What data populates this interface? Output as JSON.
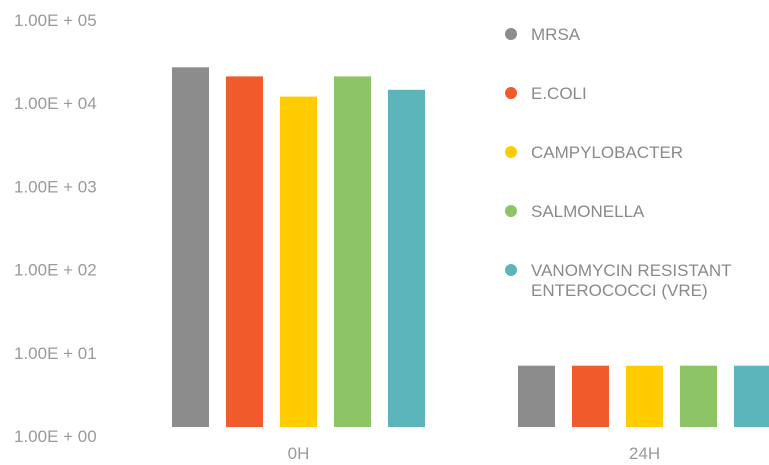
{
  "chart_data": {
    "type": "bar",
    "y_scale": "log",
    "ylim": [
      1,
      100000
    ],
    "y_ticks": [
      "1.00E + 00",
      "1.00E + 01",
      "1.00E + 02",
      "1.00E + 03",
      "1.00E + 04",
      "1.00E + 05"
    ],
    "categories": [
      "0H",
      "24H"
    ],
    "series": [
      {
        "name": "MRSA",
        "color": "#8c8c8c",
        "values": [
          27000,
          7
        ]
      },
      {
        "name": "E.COLI",
        "color": "#f15a2b",
        "values": [
          21000,
          7
        ]
      },
      {
        "name": "CAMPYLOBACTER",
        "color": "#ffcc00",
        "values": [
          12000,
          7
        ]
      },
      {
        "name": "SALMONELLA",
        "color": "#8dc566",
        "values": [
          21000,
          7
        ]
      },
      {
        "name": "VANOMYCIN RESISTANT ENTEROCOCCI (VRE)",
        "color": "#5db5bc",
        "values": [
          14500,
          7
        ]
      }
    ],
    "legend": {
      "placement": "right",
      "labels": [
        [
          "MRSA"
        ],
        [
          "E.COLI"
        ],
        [
          "CAMPYLOBACTER"
        ],
        [
          "SALMONELLA"
        ],
        [
          "VANOMYCIN RESISTANT",
          "ENTEROCOCCI (VRE)"
        ]
      ]
    },
    "grid": false
  }
}
